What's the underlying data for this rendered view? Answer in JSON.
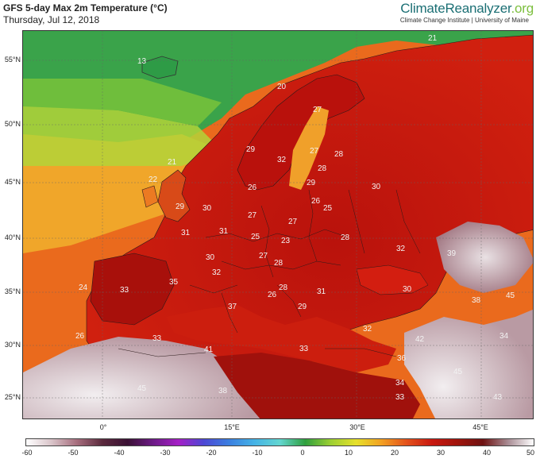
{
  "header": {
    "title": "GFS 5-day Max 2m Temperature (°C)",
    "subtitle": "Thursday, Jul 12, 2018",
    "brand_main": "ClimateReanalyzer",
    "brand_tld": ".org",
    "brand_sub": "Climate Change Institute | University of Maine"
  },
  "map": {
    "lat_labels": [
      "55°N",
      "50°N",
      "45°N",
      "40°N",
      "35°N",
      "30°N",
      "25°N"
    ],
    "lon_labels": [
      "0°",
      "15°E",
      "30°E",
      "45°E"
    ],
    "temperature_labels": [
      {
        "v": "21"
      },
      {
        "v": "13"
      },
      {
        "v": "20"
      },
      {
        "v": "27"
      },
      {
        "v": "29"
      },
      {
        "v": "32"
      },
      {
        "v": "27"
      },
      {
        "v": "28"
      },
      {
        "v": "28"
      },
      {
        "v": "21"
      },
      {
        "v": "22"
      },
      {
        "v": "26"
      },
      {
        "v": "29"
      },
      {
        "v": "30"
      },
      {
        "v": "26"
      },
      {
        "v": "25"
      },
      {
        "v": "29"
      },
      {
        "v": "30"
      },
      {
        "v": "27"
      },
      {
        "v": "27"
      },
      {
        "v": "31"
      },
      {
        "v": "31"
      },
      {
        "v": "25"
      },
      {
        "v": "23"
      },
      {
        "v": "28"
      },
      {
        "v": "30"
      },
      {
        "v": "27"
      },
      {
        "v": "28"
      },
      {
        "v": "32"
      },
      {
        "v": "39"
      },
      {
        "v": "32"
      },
      {
        "v": "35"
      },
      {
        "v": "24"
      },
      {
        "v": "33"
      },
      {
        "v": "28"
      },
      {
        "v": "31"
      },
      {
        "v": "26"
      },
      {
        "v": "30"
      },
      {
        "v": "37"
      },
      {
        "v": "29"
      },
      {
        "v": "38"
      },
      {
        "v": "45"
      },
      {
        "v": "32"
      },
      {
        "v": "26"
      },
      {
        "v": "33"
      },
      {
        "v": "41"
      },
      {
        "v": "33"
      },
      {
        "v": "42"
      },
      {
        "v": "34"
      },
      {
        "v": "36"
      },
      {
        "v": "45"
      },
      {
        "v": "45"
      },
      {
        "v": "38"
      },
      {
        "v": "34"
      },
      {
        "v": "33"
      },
      {
        "v": "43"
      }
    ]
  },
  "colorbar": {
    "ticks": [
      "-60",
      "-50",
      "-40",
      "-30",
      "-20",
      "-10",
      "0",
      "10",
      "20",
      "30",
      "40",
      "50"
    ],
    "colors": {
      "hot": "#c0140e",
      "very_hot": "#8e1010",
      "warm": "#e85a1d",
      "mild": "#f29a25",
      "cool": "#7cc23a",
      "cold": "#2e9b46",
      "extreme": "#d8cbd0"
    }
  }
}
